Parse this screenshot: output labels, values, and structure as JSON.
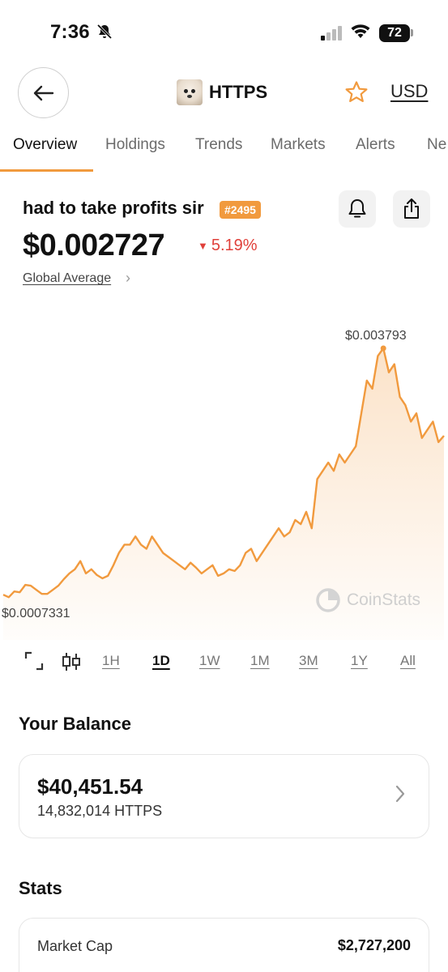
{
  "status_bar": {
    "time": "7:36",
    "battery": "72"
  },
  "header": {
    "symbol": "HTTPS",
    "currency": "USD"
  },
  "tabs": [
    {
      "label": "Overview",
      "active": true
    },
    {
      "label": "Holdings"
    },
    {
      "label": "Trends"
    },
    {
      "label": "Markets"
    },
    {
      "label": "Alerts"
    },
    {
      "label": "Ne"
    }
  ],
  "coin": {
    "name": "had to take profits sir",
    "rank": "#2495",
    "price": "$0.002727",
    "change": "5.19%",
    "change_direction": "down",
    "global_label": "Global Average"
  },
  "chart": {
    "high_label": "$0.003793",
    "low_label": "$0.0007331",
    "watermark": "CoinStats",
    "line_color": "#f19a3e"
  },
  "chart_data": {
    "type": "area",
    "ylim": [
      0.0007331,
      0.003793
    ],
    "values": [
      0.00079,
      0.00076,
      0.00083,
      0.00082,
      0.00091,
      0.0009,
      0.00085,
      0.0008,
      0.0008,
      0.00085,
      0.0009,
      0.00098,
      0.00105,
      0.0011,
      0.0012,
      0.00105,
      0.0011,
      0.00103,
      0.00099,
      0.00102,
      0.00115,
      0.0013,
      0.0014,
      0.0014,
      0.0015,
      0.0014,
      0.00135,
      0.0015,
      0.0014,
      0.0013,
      0.00125,
      0.0012,
      0.00115,
      0.0011,
      0.00118,
      0.00112,
      0.00105,
      0.0011,
      0.00115,
      0.00102,
      0.00105,
      0.0011,
      0.00108,
      0.00115,
      0.0013,
      0.00135,
      0.0012,
      0.0013,
      0.0014,
      0.0015,
      0.0016,
      0.0015,
      0.00155,
      0.0017,
      0.00165,
      0.0018,
      0.0016,
      0.0022,
      0.0023,
      0.0024,
      0.0023,
      0.0025,
      0.0024,
      0.0025,
      0.0026,
      0.003,
      0.0034,
      0.0033,
      0.0037,
      0.003793,
      0.0035,
      0.0036,
      0.0032,
      0.0031,
      0.0029,
      0.003,
      0.0027,
      0.0028,
      0.0029,
      0.00265,
      0.002727
    ],
    "ranges": [
      "1H",
      "1D",
      "1W",
      "1M",
      "3M",
      "1Y",
      "All"
    ],
    "selected_range": "1D"
  },
  "balance": {
    "title": "Your Balance",
    "value": "$40,451.54",
    "amount": "14,832,014 HTTPS"
  },
  "stats": {
    "title": "Stats",
    "items": [
      {
        "label": "Market Cap",
        "value": "$2,727,200"
      }
    ]
  }
}
